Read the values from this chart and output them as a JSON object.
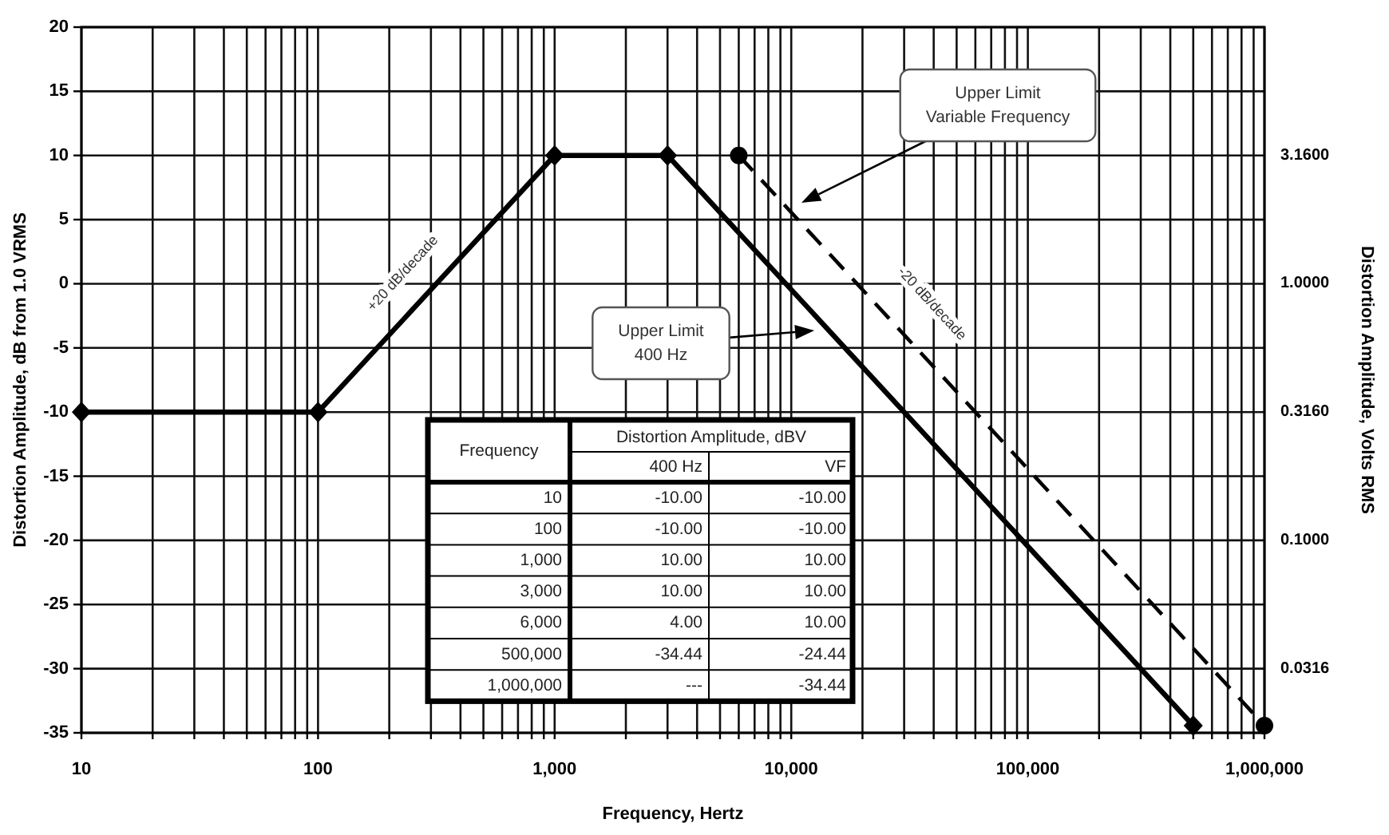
{
  "chart_data": [
    {
      "type": "line",
      "xlabel": "Frequency, Hertz",
      "ylabel": "Distortion Amplitude, dB from 1.0 VRMS",
      "y2label": "Distortion Amplitude, Volts RMS",
      "log": "x",
      "xlim": [
        10,
        1000000
      ],
      "xticks": [
        {
          "value": 10,
          "label": "10"
        },
        {
          "value": 20,
          "label": null
        },
        {
          "value": 30,
          "label": null
        },
        {
          "value": 40,
          "label": null
        },
        {
          "value": 50,
          "label": null
        },
        {
          "value": 60,
          "label": null
        },
        {
          "value": 70,
          "label": null
        },
        {
          "value": 80,
          "label": null
        },
        {
          "value": 90,
          "label": null
        },
        {
          "value": 100,
          "label": "100"
        },
        {
          "value": 200,
          "label": null
        },
        {
          "value": 300,
          "label": null
        },
        {
          "value": 400,
          "label": null
        },
        {
          "value": 500,
          "label": null
        },
        {
          "value": 600,
          "label": null
        },
        {
          "value": 700,
          "label": null
        },
        {
          "value": 800,
          "label": null
        },
        {
          "value": 900,
          "label": null
        },
        {
          "value": 1000,
          "label": "1,000"
        },
        {
          "value": 2000,
          "label": null
        },
        {
          "value": 3000,
          "label": null
        },
        {
          "value": 4000,
          "label": null
        },
        {
          "value": 5000,
          "label": null
        },
        {
          "value": 6000,
          "label": null
        },
        {
          "value": 7000,
          "label": null
        },
        {
          "value": 8000,
          "label": null
        },
        {
          "value": 9000,
          "label": null
        },
        {
          "value": 10000,
          "label": "10,000"
        },
        {
          "value": 20000,
          "label": null
        },
        {
          "value": 30000,
          "label": null
        },
        {
          "value": 40000,
          "label": null
        },
        {
          "value": 50000,
          "label": null
        },
        {
          "value": 60000,
          "label": null
        },
        {
          "value": 70000,
          "label": null
        },
        {
          "value": 80000,
          "label": null
        },
        {
          "value": 90000,
          "label": null
        },
        {
          "value": 100000,
          "label": "100,000"
        },
        {
          "value": 200000,
          "label": null
        },
        {
          "value": 300000,
          "label": null
        },
        {
          "value": 400000,
          "label": null
        },
        {
          "value": 500000,
          "label": null
        },
        {
          "value": 600000,
          "label": null
        },
        {
          "value": 700000,
          "label": null
        },
        {
          "value": 800000,
          "label": null
        },
        {
          "value": 900000,
          "label": null
        },
        {
          "value": 1000000,
          "label": "1,000,000"
        }
      ],
      "ylim": [
        -35,
        20
      ],
      "yticks": [
        -35,
        -30,
        -25,
        -20,
        -15,
        -10,
        -5,
        0,
        5,
        10,
        15,
        20
      ],
      "grid": true,
      "series": [
        {
          "x": [
            10,
            100,
            1000,
            3000,
            500000
          ],
          "values": [
            -10,
            -10,
            10,
            10,
            -34.44
          ],
          "color": "#000000",
          "marker": "diamond",
          "line_style": "solid"
        },
        {
          "x": [
            6000,
            1000000
          ],
          "values": [
            10,
            -34.44
          ],
          "color": "#000000",
          "marker": "circle",
          "line_style": "dashed"
        }
      ],
      "annotations": [
        "+20 dB/decade",
        "-20 dB/decade",
        "Upper Limit\n400 Hz",
        "Upper Limit\nVariable Frequency",
        "3.1600",
        "1.0000",
        "0.3160",
        "0.1000",
        "0.0316"
      ]
    },
    {
      "type": "other",
      "title": "Distortion Amplitude, dBV",
      "xlabel": "Frequency",
      "categories": [
        "10",
        "100",
        "1,000",
        "3,000",
        "6,000",
        "500,000",
        "1,000,000"
      ],
      "series": [
        {
          "name": "400 Hz",
          "values": [
            -10,
            -10,
            10,
            10,
            4,
            -34.44,
            null
          ],
          "value_labels": [
            "-10.00",
            "-10.00",
            "10.00",
            "10.00",
            "4.00",
            "-34.44",
            "---"
          ]
        },
        {
          "name": "VF",
          "values": [
            -10,
            -10,
            10,
            10,
            10,
            -24.44,
            -34.44
          ],
          "value_labels": [
            "-10.00",
            "-10.00",
            "10.00",
            "10.00",
            "10.00",
            "-24.44",
            "-34.44"
          ]
        }
      ]
    }
  ]
}
